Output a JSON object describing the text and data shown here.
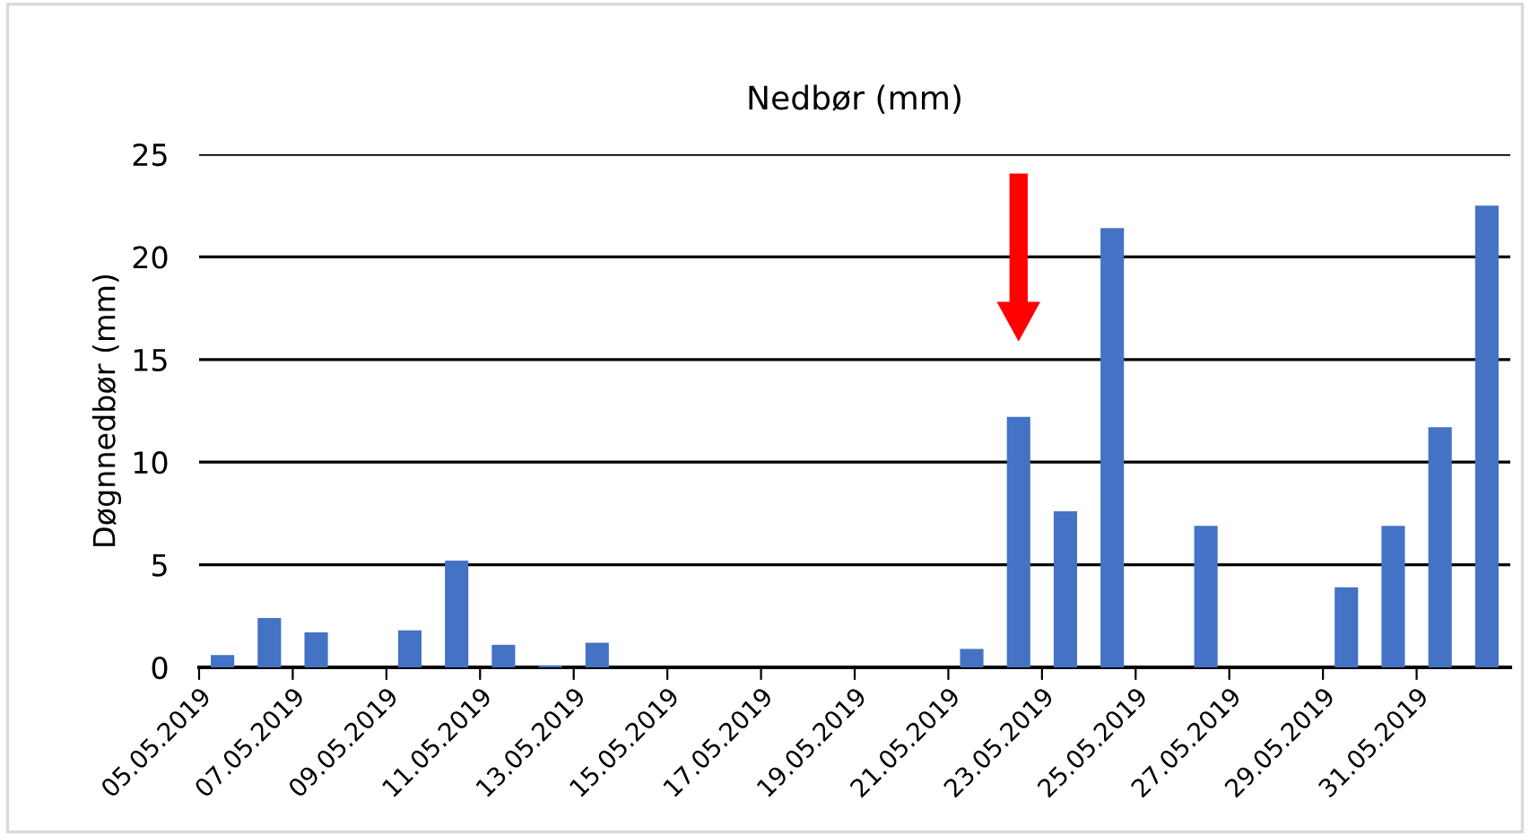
{
  "chart_data": {
    "type": "bar",
    "title": "Nedbør (mm)",
    "ylabel": "Døgnnedbør (mm)",
    "categories": [
      "05.05.2019",
      null,
      "07.05.2019",
      null,
      "09.05.2019",
      null,
      "11.05.2019",
      null,
      "13.05.2019",
      null,
      "15.05.2019",
      null,
      "17.05.2019",
      null,
      "19.05.2019",
      null,
      "21.05.2019",
      null,
      "23.05.2019",
      null,
      "25.05.2019",
      null,
      "27.05.2019",
      null,
      "29.05.2019",
      null,
      "31.05.2019",
      null
    ],
    "series": [
      {
        "color": "#4472c4",
        "values": [
          0.6,
          2.4,
          1.7,
          0,
          1.8,
          5.2,
          1.1,
          0.1,
          1.2,
          0,
          0,
          0,
          0,
          0,
          0,
          0,
          0.9,
          12.2,
          7.6,
          21.4,
          0,
          6.9,
          0,
          0,
          3.9,
          6.9,
          11.7,
          22.5
        ]
      }
    ],
    "ylim": [
      0,
      25
    ],
    "yticks": [
      0,
      5,
      10,
      15,
      20,
      25
    ],
    "grid": "y"
  }
}
